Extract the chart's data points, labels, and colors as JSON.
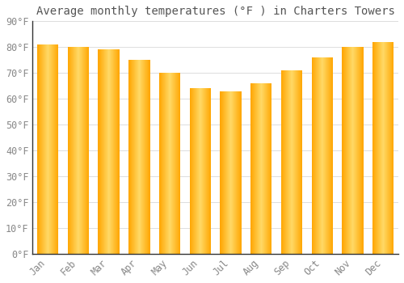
{
  "title": "Average monthly temperatures (°F ) in Charters Towers",
  "months": [
    "Jan",
    "Feb",
    "Mar",
    "Apr",
    "May",
    "Jun",
    "Jul",
    "Aug",
    "Sep",
    "Oct",
    "Nov",
    "Dec"
  ],
  "values": [
    81,
    80,
    79,
    75,
    70,
    64,
    63,
    66,
    71,
    76,
    80,
    82
  ],
  "bar_color_center": "#FFD966",
  "bar_color_edge": "#FFA500",
  "background_color": "#FFFFFF",
  "grid_color": "#DDDDDD",
  "ylim": [
    0,
    90
  ],
  "yticks": [
    0,
    10,
    20,
    30,
    40,
    50,
    60,
    70,
    80,
    90
  ],
  "ytick_labels": [
    "0°F",
    "10°F",
    "20°F",
    "30°F",
    "40°F",
    "50°F",
    "60°F",
    "70°F",
    "80°F",
    "90°F"
  ],
  "title_fontsize": 10,
  "tick_fontsize": 8.5,
  "font_color": "#888888",
  "title_color": "#555555"
}
